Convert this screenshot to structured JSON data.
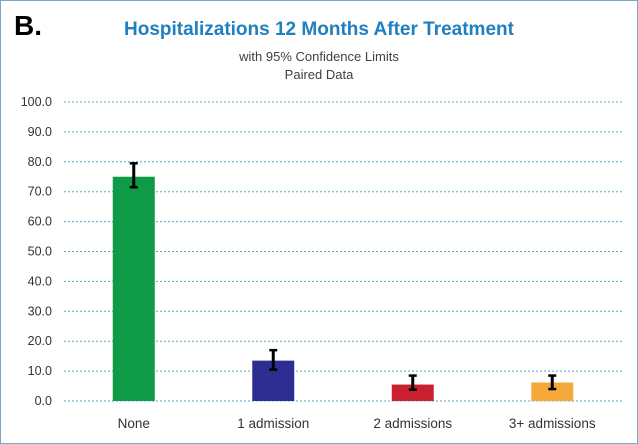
{
  "panel_label": "B.",
  "chart_data": {
    "type": "bar",
    "title": "Hospitalizations 12 Months After Treatment",
    "subtitle": [
      "with 95% Confidence Limits",
      "Paired Data"
    ],
    "categories": [
      "None",
      "1 admission",
      "2 admissions",
      "3+ admissions"
    ],
    "values": [
      75.0,
      13.5,
      5.5,
      6.2
    ],
    "ci_lower": [
      71.5,
      10.5,
      3.8,
      4.0
    ],
    "ci_upper": [
      79.5,
      17.0,
      8.5,
      8.5
    ],
    "colors": [
      "#0f9a47",
      "#2e2e92",
      "#c8202f",
      "#f6a93b"
    ],
    "ylim": [
      0,
      100
    ],
    "yticks": [
      0,
      10,
      20,
      30,
      40,
      50,
      60,
      70,
      80,
      90,
      100
    ],
    "ytick_labels": [
      "0.0",
      "10.0",
      "20.0",
      "30.0",
      "40.0",
      "50.0",
      "60.0",
      "70.0",
      "80.0",
      "90.0",
      "100.0"
    ],
    "xlabel": "",
    "ylabel": "",
    "grid": true,
    "gridline_color": "#5aa7c8",
    "legend": false
  }
}
